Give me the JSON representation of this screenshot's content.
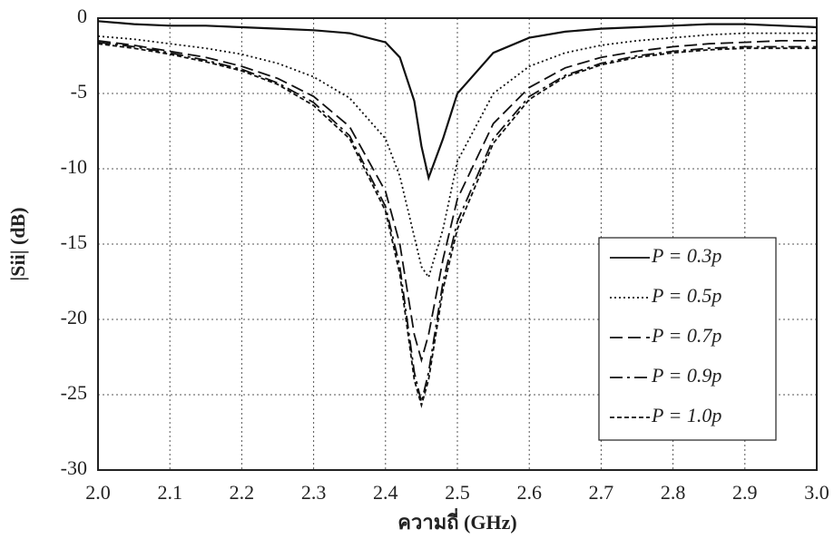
{
  "chart_data": {
    "type": "line",
    "x_label": "ความถี่ (GHz)",
    "y_label": "|Sii| (dB)",
    "x": [
      2.0,
      2.05,
      2.1,
      2.15,
      2.2,
      2.25,
      2.3,
      2.35,
      2.4,
      2.42,
      2.44,
      2.45,
      2.46,
      2.48,
      2.5,
      2.55,
      2.6,
      2.65,
      2.7,
      2.75,
      2.8,
      2.85,
      2.9,
      2.95,
      3.0
    ],
    "series": [
      {
        "name": "P = 0.3p",
        "color": "#111111",
        "dash": "solid",
        "values": [
          -0.2,
          -0.4,
          -0.5,
          -0.5,
          -0.6,
          -0.7,
          -0.8,
          -1.0,
          -1.6,
          -2.6,
          -5.5,
          -8.5,
          -10.6,
          -8.0,
          -5.0,
          -2.3,
          -1.3,
          -0.9,
          -0.7,
          -0.6,
          -0.5,
          -0.4,
          -0.4,
          -0.5,
          -0.6
        ]
      },
      {
        "name": "P = 0.5p",
        "color": "#111111",
        "dash": "dotted",
        "values": [
          -1.2,
          -1.4,
          -1.7,
          -2.0,
          -2.4,
          -3.0,
          -3.9,
          -5.3,
          -8.0,
          -10.5,
          -14.5,
          -16.5,
          -17.2,
          -14.0,
          -9.5,
          -5.0,
          -3.2,
          -2.3,
          -1.8,
          -1.5,
          -1.3,
          -1.1,
          -1.0,
          -1.0,
          -1.0
        ]
      },
      {
        "name": "P = 0.7p",
        "color": "#111111",
        "dash": "dashed",
        "values": [
          -1.5,
          -1.8,
          -2.2,
          -2.6,
          -3.2,
          -4.0,
          -5.2,
          -7.2,
          -11.5,
          -15.0,
          -21.0,
          -22.7,
          -21.0,
          -16.0,
          -12.0,
          -7.0,
          -4.6,
          -3.3,
          -2.6,
          -2.2,
          -1.9,
          -1.7,
          -1.6,
          -1.5,
          -1.5
        ]
      },
      {
        "name": "P = 0.9p",
        "color": "#111111",
        "dash": "dashdot",
        "values": [
          -1.6,
          -1.9,
          -2.3,
          -2.8,
          -3.4,
          -4.3,
          -5.6,
          -7.8,
          -12.5,
          -16.5,
          -23.5,
          -25.5,
          -23.5,
          -17.5,
          -13.5,
          -8.0,
          -5.2,
          -3.8,
          -3.0,
          -2.5,
          -2.2,
          -2.0,
          -1.9,
          -1.9,
          -1.9
        ]
      },
      {
        "name": "P = 1.0p",
        "color": "#111111",
        "dash": "shortdash",
        "values": [
          -1.7,
          -2.0,
          -2.4,
          -2.9,
          -3.5,
          -4.4,
          -5.8,
          -8.0,
          -12.8,
          -17.0,
          -24.0,
          -25.7,
          -24.0,
          -18.0,
          -14.0,
          -8.3,
          -5.4,
          -3.9,
          -3.1,
          -2.6,
          -2.3,
          -2.1,
          -2.0,
          -2.0,
          -2.0
        ]
      }
    ],
    "xlim": [
      2.0,
      3.0
    ],
    "xticks": [
      {
        "value": 2.0,
        "label": "2.0"
      },
      2.1,
      2.2,
      2.3,
      2.4,
      2.5,
      2.6,
      2.7,
      2.8,
      2.9,
      {
        "value": 3.0,
        "label": "3.0"
      }
    ],
    "ylim": [
      -30,
      0
    ],
    "yticks": [
      0,
      -5,
      -10,
      -15,
      -20,
      -25,
      -30
    ],
    "grid": true,
    "legend": "lower right"
  }
}
